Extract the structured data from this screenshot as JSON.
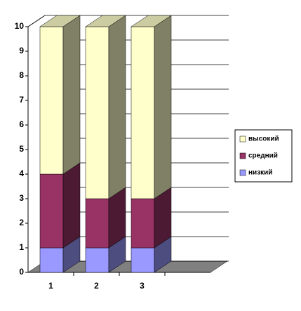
{
  "chart_data": {
    "type": "bar3d_stacked",
    "categories": [
      "1",
      "2",
      "3"
    ],
    "series": [
      {
        "name": "низкий",
        "color": "#9999ff",
        "values": [
          1,
          1,
          1
        ]
      },
      {
        "name": "средний",
        "color": "#993366",
        "values": [
          3,
          2,
          2
        ]
      },
      {
        "name": "высокий",
        "color": "#ffffcc",
        "values": [
          6,
          7,
          7
        ]
      }
    ],
    "ylim": [
      0,
      10
    ],
    "yticks": [
      0,
      1,
      2,
      3,
      4,
      5,
      6,
      7,
      8,
      9,
      10
    ],
    "grid": true,
    "legend": "right"
  }
}
